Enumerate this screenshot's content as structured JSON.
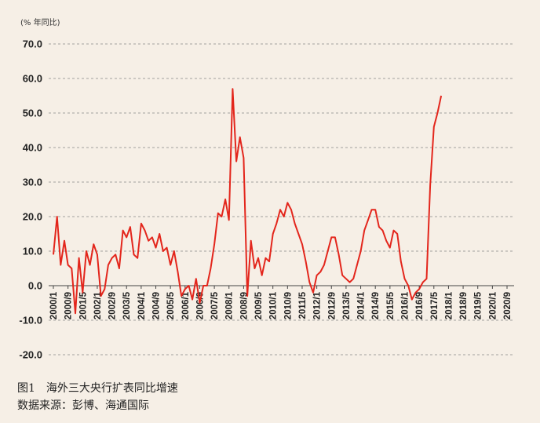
{
  "chart_data": {
    "type": "line",
    "unit_label": "(% 年同比)",
    "ylim": [
      -20,
      70
    ],
    "yticks": [
      "70.0",
      "60.0",
      "50.0",
      "40.0",
      "30.0",
      "20.0",
      "10.0",
      "0.0",
      "-10.0",
      "-20.0"
    ],
    "ytick_values": [
      70,
      60,
      50,
      40,
      30,
      20,
      10,
      0,
      -10,
      -20
    ],
    "xtick_labels": [
      "2000/1",
      "2000/9",
      "2001/5",
      "2002/1",
      "2002/9",
      "2003/5",
      "2004/1",
      "2004/9",
      "2005/5",
      "2006/1",
      "2006/9",
      "2007/5",
      "2008/1",
      "2008/9",
      "2009/5",
      "2010/1",
      "2010/9",
      "2011/5",
      "2012/1",
      "2012/9",
      "2013/5",
      "2014/1",
      "2014/9",
      "2015/5",
      "2016/1",
      "2016/9",
      "2017/5",
      "2018/1",
      "2018/9",
      "2019/5",
      "2020/1",
      "2020/9"
    ],
    "grid": "horizontal-dashed",
    "series": [
      {
        "color": "#e3261c",
        "x_start": "2000/1",
        "x_step": "2 months",
        "values": [
          9,
          20,
          6,
          13,
          6,
          5,
          -8,
          8,
          -2,
          10,
          6,
          12,
          9,
          -3,
          -1,
          6,
          8,
          9,
          5,
          16,
          14,
          17,
          9,
          8,
          18,
          16,
          13,
          14,
          11,
          15,
          10,
          11,
          6,
          10,
          4,
          -3,
          -1,
          0,
          -4,
          2,
          -5,
          0,
          0,
          5,
          12,
          21,
          20,
          25,
          19,
          57,
          36,
          43,
          37,
          -3,
          13,
          5,
          8,
          3,
          8,
          7,
          15,
          18,
          22,
          20,
          24,
          22,
          18,
          15,
          12,
          7,
          1,
          -2,
          3,
          4,
          6,
          10,
          14,
          14,
          9,
          3,
          2,
          1,
          2,
          6,
          10,
          16,
          19,
          22,
          22,
          17,
          16,
          13,
          11,
          16,
          15,
          7,
          2,
          0,
          -4,
          -2,
          -1,
          1,
          2,
          29,
          46,
          50,
          55
        ]
      }
    ]
  },
  "caption": {
    "figure_number": "图1",
    "title": "海外三大央行扩表同比增速",
    "source": "数据来源：彭博、海通国际"
  }
}
